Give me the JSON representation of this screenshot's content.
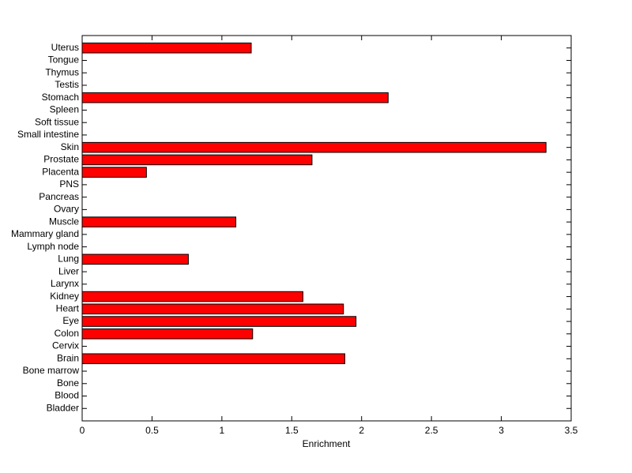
{
  "chart_data": {
    "type": "barh",
    "xlabel": "Enrichment",
    "categories": [
      "Bladder",
      "Blood",
      "Bone",
      "Bone marrow",
      "Brain",
      "Cervix",
      "Colon",
      "Eye",
      "Heart",
      "Kidney",
      "Larynx",
      "Liver",
      "Lung",
      "Lymph node",
      "Mammary gland",
      "Muscle",
      "Ovary",
      "Pancreas",
      "PNS",
      "Placenta",
      "Prostate",
      "Skin",
      "Small intestine",
      "Soft tissue",
      "Spleen",
      "Stomach",
      "Testis",
      "Thymus",
      "Tongue",
      "Uterus"
    ],
    "values": [
      0,
      0,
      0,
      0,
      1.88,
      0,
      1.22,
      1.96,
      1.87,
      1.58,
      0,
      0,
      0.76,
      0,
      0,
      1.1,
      0,
      0,
      0,
      0.46,
      1.645,
      3.32,
      0,
      0,
      0,
      2.19,
      0,
      0,
      0,
      1.21
    ],
    "color": "#ff0000",
    "xlim": [
      0,
      3.5
    ],
    "xticks": [
      0,
      0.5,
      1,
      1.5,
      2,
      2.5,
      3,
      3.5
    ]
  }
}
